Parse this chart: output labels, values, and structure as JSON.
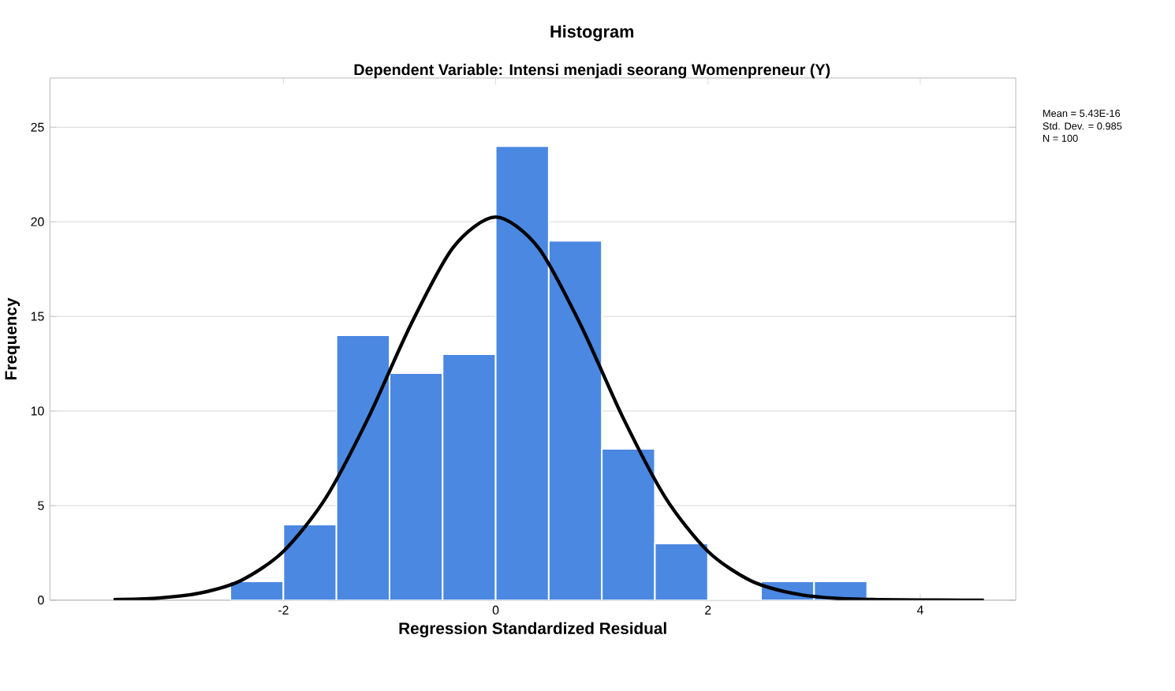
{
  "chart_data": {
    "type": "histogram",
    "title": "Histogram",
    "subtitle": "Dependent Variable: Intensi menjadi seorang Womenpreneur (Y)",
    "xlabel": "Regression Standardized Residual",
    "ylabel": "Frequency",
    "bins": [
      -2.5,
      -2,
      -1.5,
      -1,
      -0.5,
      0,
      0.5,
      1,
      1.5,
      2,
      2.5,
      3,
      3.5
    ],
    "values": [
      1,
      4,
      14,
      12,
      13,
      24,
      19,
      8,
      3,
      0,
      1,
      1
    ],
    "color": "#4a88e2",
    "series": [
      {
        "type": "line",
        "color": "#000000",
        "x": [
          -3.6,
          -3.2,
          -2.8,
          -2.4,
          -2.0,
          -1.6,
          -1.2,
          -0.8,
          -0.4,
          0,
          0.4,
          0.8,
          1.2,
          1.6,
          2.0,
          2.4,
          2.8,
          3.2,
          3.6,
          4.0,
          4.4,
          4.6
        ],
        "values": [
          0.03,
          0.1,
          0.36,
          1.04,
          2.58,
          5.41,
          9.64,
          14.56,
          18.65,
          20.25,
          18.65,
          14.56,
          9.64,
          5.41,
          2.58,
          1.04,
          0.36,
          0.1,
          0.03,
          0.01,
          0,
          0
        ]
      }
    ],
    "xlim": [
      -4.2,
      4.9
    ],
    "ylim": [
      0,
      27.6
    ],
    "xticks": [
      -2,
      0,
      2,
      4
    ],
    "yticks": [
      0,
      5,
      10,
      15,
      20,
      25
    ],
    "grid": "y",
    "marker": "none",
    "line_style": "solid",
    "annotations": [
      "Mean = 5.43E-16",
      "Std. Dev. = 0.985",
      "N = 100"
    ]
  }
}
